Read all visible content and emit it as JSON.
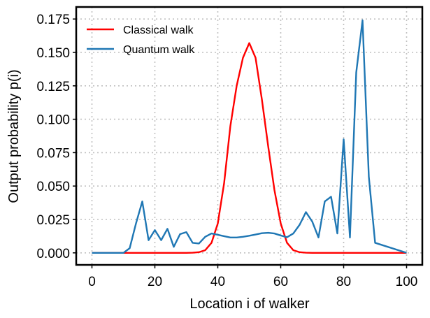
{
  "chart_data": {
    "type": "line",
    "xlabel": "Location i of walker",
    "ylabel": "Output probability p(i)",
    "xlim": [
      -5,
      105
    ],
    "ylim": [
      -0.009,
      0.184
    ],
    "xticks": [
      0,
      20,
      40,
      60,
      80,
      100
    ],
    "yticks": [
      0.0,
      0.025,
      0.05,
      0.075,
      0.1,
      0.125,
      0.15,
      0.175
    ],
    "ytick_labels": [
      "0.000",
      "0.025",
      "0.050",
      "0.075",
      "0.100",
      "0.125",
      "0.150",
      "0.175"
    ],
    "grid": true,
    "legend_position": "top-left",
    "series": [
      {
        "name": "Classical walk",
        "color": "#ff0000",
        "x": [
          0,
          30,
          32,
          34,
          36,
          38,
          40,
          42,
          44,
          46,
          48,
          50,
          52,
          54,
          56,
          58,
          60,
          62,
          64,
          66,
          68,
          70,
          100
        ],
        "y": [
          0,
          0,
          0.0001,
          0.0005,
          0.002,
          0.0075,
          0.022,
          0.052,
          0.095,
          0.125,
          0.146,
          0.157,
          0.146,
          0.115,
          0.08,
          0.047,
          0.022,
          0.0075,
          0.002,
          0.0005,
          0.0001,
          0,
          0
        ]
      },
      {
        "name": "Quantum walk",
        "color": "#1f77b4",
        "x": [
          0,
          10,
          12,
          14,
          16,
          18,
          20,
          22,
          24,
          26,
          28,
          30,
          32,
          34,
          36,
          38,
          40,
          42,
          44,
          46,
          48,
          50,
          52,
          54,
          56,
          58,
          60,
          62,
          64,
          66,
          68,
          70,
          72,
          74,
          76,
          78,
          80,
          82,
          84,
          86,
          88,
          90,
          100
        ],
        "y": [
          0,
          0,
          0.0035,
          0.022,
          0.0385,
          0.0095,
          0.017,
          0.0095,
          0.018,
          0.0045,
          0.014,
          0.0155,
          0.0075,
          0.007,
          0.012,
          0.0145,
          0.0135,
          0.0125,
          0.0115,
          0.0115,
          0.012,
          0.0128,
          0.0137,
          0.0147,
          0.015,
          0.0145,
          0.013,
          0.0117,
          0.0145,
          0.021,
          0.0305,
          0.0235,
          0.0115,
          0.0385,
          0.042,
          0.0145,
          0.085,
          0.0115,
          0.135,
          0.174,
          0.057,
          0.0075,
          0
        ]
      }
    ]
  }
}
